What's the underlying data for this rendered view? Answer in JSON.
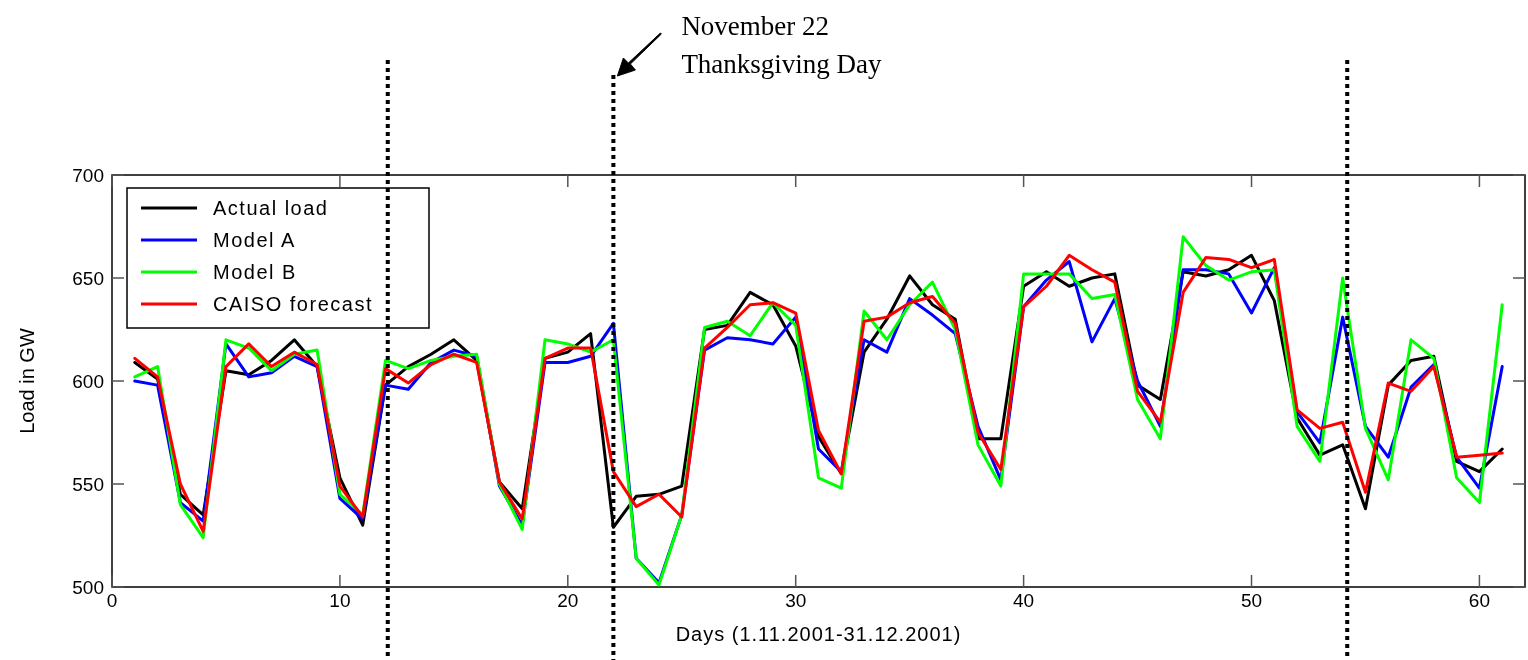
{
  "chart_data": {
    "type": "line",
    "xlabel": "Days (1.11.2001-31.12.2001)",
    "ylabel": "Load in GW",
    "x": [
      1,
      2,
      3,
      4,
      5,
      6,
      7,
      8,
      9,
      10,
      11,
      12,
      13,
      14,
      15,
      16,
      17,
      18,
      19,
      20,
      21,
      22,
      23,
      24,
      25,
      26,
      27,
      28,
      29,
      30,
      31,
      32,
      33,
      34,
      35,
      36,
      37,
      38,
      39,
      40,
      41,
      42,
      43,
      44,
      45,
      46,
      47,
      48,
      49,
      50,
      51,
      52,
      53,
      54,
      55,
      56,
      57,
      58,
      59,
      60,
      61
    ],
    "series": [
      {
        "name": "Actual load",
        "color": "#000000",
        "values": [
          609,
          601,
          545,
          535,
          605,
          603,
          610,
          620,
          607,
          553,
          530,
          598,
          607,
          613,
          620,
          610,
          551,
          538,
          611,
          614,
          623,
          529,
          544,
          545,
          549,
          625,
          627,
          643,
          637,
          617,
          573,
          555,
          614,
          630,
          651,
          637,
          630,
          572,
          572,
          646,
          653,
          646,
          650,
          652,
          598,
          591,
          653,
          651,
          654,
          661,
          639,
          582,
          564,
          569,
          538,
          598,
          610,
          612,
          561,
          556,
          567
        ]
      },
      {
        "name": "Model A",
        "color": "#0000ff",
        "values": [
          600,
          598,
          541,
          532,
          618,
          602,
          604,
          612,
          607,
          543,
          533,
          598,
          596,
          609,
          615,
          612,
          549,
          530,
          609,
          609,
          612,
          628,
          514,
          502,
          535,
          615,
          621,
          620,
          618,
          631,
          567,
          556,
          620,
          614,
          640,
          632,
          623,
          578,
          552,
          636,
          649,
          658,
          619,
          640,
          600,
          578,
          654,
          654,
          652,
          633,
          655,
          585,
          570,
          631,
          578,
          563,
          597,
          608,
          563,
          548,
          607
        ]
      },
      {
        "name": "Model B",
        "color": "#00ff00",
        "values": [
          602,
          607,
          540,
          524,
          620,
          616,
          605,
          613,
          615,
          545,
          535,
          610,
          606,
          610,
          612,
          613,
          550,
          528,
          620,
          618,
          614,
          620,
          514,
          501,
          535,
          626,
          629,
          622,
          638,
          627,
          553,
          548,
          634,
          620,
          637,
          648,
          625,
          569,
          549,
          652,
          652,
          652,
          640,
          642,
          591,
          572,
          670,
          656,
          649,
          653,
          654,
          578,
          561,
          650,
          577,
          552,
          620,
          611,
          553,
          541,
          637
        ]
      },
      {
        "name": "CAISO forecast",
        "color": "#ff0000",
        "values": [
          611,
          602,
          550,
          527,
          607,
          618,
          607,
          614,
          608,
          549,
          534,
          606,
          599,
          608,
          613,
          609,
          551,
          533,
          611,
          616,
          616,
          556,
          539,
          545,
          534,
          616,
          626,
          637,
          638,
          633,
          576,
          555,
          629,
          631,
          638,
          641,
          628,
          575,
          557,
          636,
          646,
          661,
          654,
          648,
          595,
          580,
          643,
          660,
          659,
          655,
          659,
          586,
          577,
          580,
          546,
          599,
          595,
          607,
          563,
          564,
          565
        ]
      }
    ],
    "xlim": [
      0,
      62
    ],
    "xticks": [
      0,
      10,
      20,
      30,
      40,
      50,
      60
    ],
    "ylim": [
      500,
      700
    ],
    "yticks": [
      500,
      550,
      600,
      650,
      700
    ],
    "ref_lines": [
      {
        "axis": "x",
        "value": 12.1,
        "line_style": "dotted",
        "color": "#000000"
      },
      {
        "axis": "x",
        "value": 22,
        "line_style": "dotted",
        "color": "#000000"
      },
      {
        "axis": "x",
        "value": 54.2,
        "line_style": "dotted",
        "color": "#000000"
      }
    ],
    "annotations": [
      "November 22\nThanksgiving Day"
    ],
    "legend": "top left",
    "grid": false,
    "marker": "none",
    "line_style": "solid"
  }
}
